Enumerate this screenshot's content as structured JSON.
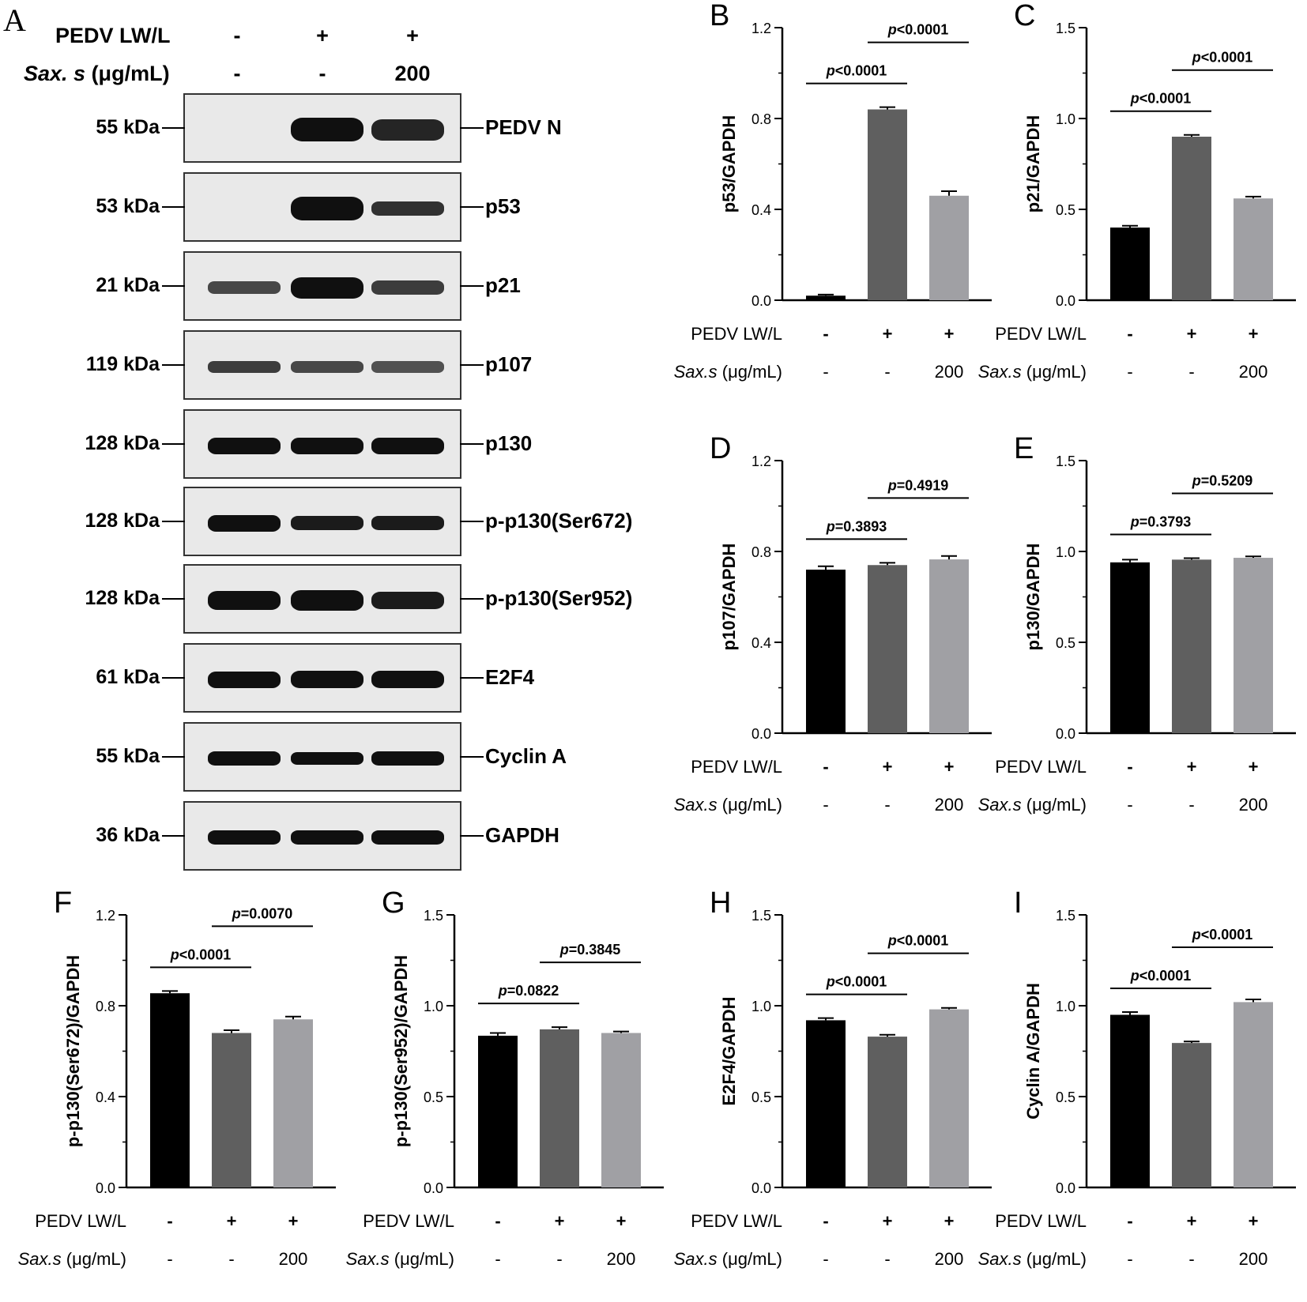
{
  "panel_a": {
    "letter": "A",
    "header": {
      "pedv_label": "PEDV LW/L",
      "sax_label_italic": "Sax. s",
      "sax_label_unit": " (μg/mL)",
      "pedv_signs": [
        "-",
        "+",
        "+"
      ],
      "sax_signs": [
        "-",
        "-",
        "200"
      ]
    },
    "blots": [
      {
        "kda": "55 kDa",
        "protein": "PEDV N",
        "intensity": [
          0,
          1,
          0.9
        ],
        "thickness": [
          0,
          1,
          0.9
        ]
      },
      {
        "kda": "53 kDa",
        "protein": "p53",
        "intensity": [
          0,
          1,
          0.85
        ],
        "thickness": [
          0,
          1,
          0.6
        ]
      },
      {
        "kda": "21 kDa",
        "protein": "p21",
        "intensity": [
          0.75,
          1,
          0.8
        ],
        "thickness": [
          0.55,
          0.9,
          0.6
        ]
      },
      {
        "kda": "119 kDa",
        "protein": "p107",
        "intensity": [
          0.8,
          0.75,
          0.7
        ],
        "thickness": [
          0.5,
          0.5,
          0.5
        ]
      },
      {
        "kda": "128 kDa",
        "protein": "p130",
        "intensity": [
          1,
          1,
          1
        ],
        "thickness": [
          0.7,
          0.7,
          0.7
        ]
      },
      {
        "kda": "128 kDa",
        "protein": "p-p130(Ser672)",
        "intensity": [
          1,
          0.95,
          0.95
        ],
        "thickness": [
          0.7,
          0.6,
          0.6
        ]
      },
      {
        "kda": "128 kDa",
        "protein": "p-p130(Ser952)",
        "intensity": [
          1,
          1,
          0.95
        ],
        "thickness": [
          0.8,
          0.85,
          0.75
        ]
      },
      {
        "kda": "61 kDa",
        "protein": "E2F4",
        "intensity": [
          1,
          1,
          1
        ],
        "thickness": [
          0.7,
          0.75,
          0.75
        ]
      },
      {
        "kda": "55 kDa",
        "protein": "Cyclin A",
        "intensity": [
          1,
          1,
          1
        ],
        "thickness": [
          0.6,
          0.55,
          0.6
        ]
      },
      {
        "kda": "36 kDa",
        "protein": "GAPDH",
        "intensity": [
          1,
          1,
          1
        ],
        "thickness": [
          0.6,
          0.6,
          0.6
        ]
      }
    ]
  },
  "colors": {
    "bar1": "#000000",
    "bar2": "#5f5f5f",
    "bar3": "#a0a0a4",
    "blot_bg": "#e9e9e9",
    "band": "#101010"
  },
  "x_labels": {
    "pedv_label": "PEDV LW/L",
    "sax_label_italic": "Sax.s",
    "sax_label_unit": " (μg/mL)",
    "pedv_signs": [
      "-",
      "+",
      "+"
    ],
    "sax_signs": [
      "-",
      "-",
      "200"
    ]
  },
  "chart_data": [
    {
      "id": "B",
      "type": "bar",
      "ylabel": "p53/GAPDH",
      "ylim": [
        0,
        1.2
      ],
      "yticks": [
        "0.0",
        "0.4",
        "0.8",
        "1.2"
      ],
      "values": [
        0.02,
        0.84,
        0.46
      ],
      "errors": [
        0.005,
        0.01,
        0.02
      ],
      "comparisons": [
        {
          "from": 0,
          "to": 1,
          "label": "<0.0001"
        },
        {
          "from": 1,
          "to": 2,
          "label": "<0.0001"
        }
      ]
    },
    {
      "id": "C",
      "type": "bar",
      "ylabel": "p21/GAPDH",
      "ylim": [
        0,
        1.5
      ],
      "yticks": [
        "0.0",
        "0.5",
        "1.0",
        "1.5"
      ],
      "values": [
        0.4,
        0.9,
        0.56
      ],
      "errors": [
        0.01,
        0.01,
        0.01
      ],
      "comparisons": [
        {
          "from": 0,
          "to": 1,
          "label": "<0.0001"
        },
        {
          "from": 1,
          "to": 2,
          "label": "<0.0001"
        }
      ]
    },
    {
      "id": "D",
      "type": "bar",
      "ylabel": "p107/GAPDH",
      "ylim": [
        0,
        1.2
      ],
      "yticks": [
        "0.0",
        "0.4",
        "0.8",
        "1.2"
      ],
      "values": [
        0.72,
        0.74,
        0.765
      ],
      "errors": [
        0.015,
        0.01,
        0.015
      ],
      "comparisons": [
        {
          "from": 0,
          "to": 1,
          "label": "=0.3893"
        },
        {
          "from": 1,
          "to": 2,
          "label": "=0.4919"
        }
      ]
    },
    {
      "id": "E",
      "type": "bar",
      "ylabel": "p130/GAPDH",
      "ylim": [
        0,
        1.5
      ],
      "yticks": [
        "0.0",
        "0.5",
        "1.0",
        "1.5"
      ],
      "values": [
        0.94,
        0.955,
        0.965
      ],
      "errors": [
        0.015,
        0.008,
        0.008
      ],
      "comparisons": [
        {
          "from": 0,
          "to": 1,
          "label": "=0.3793"
        },
        {
          "from": 1,
          "to": 2,
          "label": "=0.5209"
        }
      ]
    },
    {
      "id": "F",
      "type": "bar",
      "ylabel": "p-p130(Ser672)/GAPDH",
      "ylim": [
        0,
        1.2
      ],
      "yticks": [
        "0.0",
        "0.4",
        "0.8",
        "1.2"
      ],
      "values": [
        0.855,
        0.68,
        0.74
      ],
      "errors": [
        0.01,
        0.012,
        0.012
      ],
      "comparisons": [
        {
          "from": 0,
          "to": 1,
          "label": "<0.0001"
        },
        {
          "from": 1,
          "to": 2,
          "label": "=0.0070"
        }
      ]
    },
    {
      "id": "G",
      "type": "bar",
      "ylabel": "p-p130(Ser952)/GAPDH",
      "ylim": [
        0,
        1.5
      ],
      "yticks": [
        "0.0",
        "0.5",
        "1.0",
        "1.5"
      ],
      "values": [
        0.835,
        0.87,
        0.85
      ],
      "errors": [
        0.015,
        0.012,
        0.008
      ],
      "comparisons": [
        {
          "from": 0,
          "to": 1,
          "label": "=0.0822"
        },
        {
          "from": 1,
          "to": 2,
          "label": "=0.3845"
        }
      ]
    },
    {
      "id": "H",
      "type": "bar",
      "ylabel": "E2F4/GAPDH",
      "ylim": [
        0,
        1.5
      ],
      "yticks": [
        "0.0",
        "0.5",
        "1.0",
        "1.5"
      ],
      "values": [
        0.92,
        0.83,
        0.98
      ],
      "errors": [
        0.012,
        0.01,
        0.008
      ],
      "comparisons": [
        {
          "from": 0,
          "to": 1,
          "label": "<0.0001"
        },
        {
          "from": 1,
          "to": 2,
          "label": "<0.0001"
        }
      ]
    },
    {
      "id": "I",
      "type": "bar",
      "ylabel": "Cyclin A/GAPDH",
      "ylim": [
        0,
        1.5
      ],
      "yticks": [
        "0.0",
        "0.5",
        "1.0",
        "1.5"
      ],
      "values": [
        0.95,
        0.795,
        1.02
      ],
      "errors": [
        0.015,
        0.008,
        0.015
      ],
      "comparisons": [
        {
          "from": 0,
          "to": 1,
          "label": "<0.0001"
        },
        {
          "from": 1,
          "to": 2,
          "label": "<0.0001"
        }
      ]
    }
  ]
}
